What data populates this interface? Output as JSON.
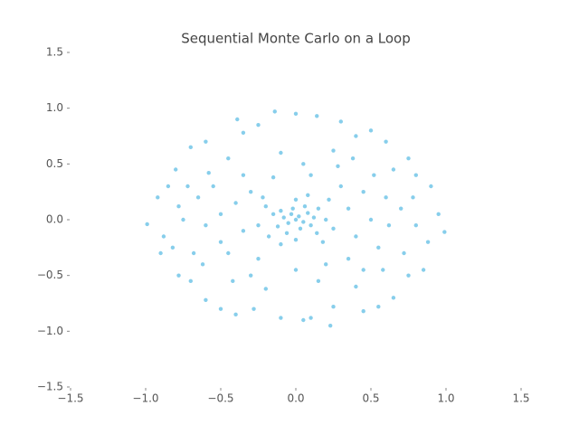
{
  "chart_data": {
    "type": "scatter",
    "title": "Sequential Monte Carlo on a Loop",
    "color": "#87ceeb",
    "xlim": [
      -1.5,
      1.5
    ],
    "ylim": [
      -1.5,
      1.5
    ],
    "xticks": [
      {
        "value": -1.5,
        "label": "−1.5"
      },
      {
        "value": -1.0,
        "label": "−1.0"
      },
      {
        "value": -0.5,
        "label": "−0.5"
      },
      {
        "value": 0,
        "label": "0.0"
      },
      0.5,
      {
        "value": 1,
        "label": "1.0"
      },
      1.5
    ],
    "yticks": [
      {
        "value": -1.5,
        "label": "−1.5"
      },
      {
        "value": -1.0,
        "label": "−1.0"
      },
      {
        "value": -0.5,
        "label": "−0.5"
      },
      {
        "value": 0,
        "label": "0.0"
      },
      0.5,
      {
        "value": 1,
        "label": "1.0"
      },
      1.5
    ],
    "x": [
      0,
      0.02,
      -0.03,
      0.05,
      -0.05,
      0.08,
      -0.08,
      0.1,
      -0.1,
      0.03,
      -0.02,
      0.12,
      -0.12,
      0.06,
      -0.06,
      0.15,
      -0.15,
      0.14,
      -0.18,
      0.2,
      -0.2,
      0.0,
      0.0,
      0.22,
      -0.25,
      0.18,
      -0.22,
      0.25,
      0.08,
      -0.1,
      0.35,
      0.4,
      0.3,
      -0.3,
      -0.35,
      -0.4,
      0.1,
      -0.15,
      0.2,
      -0.25,
      0.45,
      -0.45,
      0.5,
      -0.5,
      0.05,
      0.0,
      0.35,
      -0.35,
      0.55,
      -0.55,
      0.28,
      -0.3,
      0.45,
      -0.5,
      0.6,
      -0.6,
      0.15,
      -0.1,
      0.38,
      -0.42,
      0.52,
      -0.58,
      0.62,
      -0.65,
      0.25,
      -0.2,
      0.4,
      -0.45,
      0.58,
      -0.62,
      -0.99,
      0.99,
      -0.14,
      0.23,
      0.14,
      -0.39,
      0.5,
      -0.6,
      0.75,
      -0.8,
      0.9,
      -0.92,
      0.95,
      -0.9,
      0.85,
      -0.78,
      0.65,
      -0.6,
      0.45,
      -0.4,
      0.1,
      -0.1,
      0.3,
      -0.25,
      0.6,
      -0.7,
      0.8,
      -0.85,
      0.88,
      -0.88,
      0.75,
      -0.7,
      0.55,
      -0.5,
      0.0,
      0.05,
      0.7,
      -0.75,
      0.72,
      -0.72,
      0.65,
      -0.68,
      0.4,
      -0.35,
      0.25,
      -0.28,
      0.8,
      -0.82,
      0.78,
      -0.78
    ],
    "values": [
      0,
      0.03,
      0.05,
      -0.02,
      -0.03,
      0.06,
      0.02,
      -0.05,
      0.08,
      -0.08,
      0.1,
      0.02,
      -0.06,
      0.12,
      -0.12,
      0.1,
      0.05,
      -0.12,
      -0.15,
      0.0,
      0.12,
      0.18,
      -0.18,
      0.18,
      -0.05,
      -0.2,
      0.2,
      -0.08,
      0.22,
      -0.22,
      0.1,
      -0.15,
      0.3,
      0.25,
      -0.1,
      0.15,
      0.4,
      0.38,
      -0.4,
      -0.35,
      0.25,
      -0.3,
      0.0,
      0.05,
      0.5,
      -0.45,
      -0.35,
      0.4,
      -0.25,
      0.3,
      0.48,
      -0.5,
      -0.45,
      -0.2,
      0.2,
      -0.05,
      -0.55,
      0.6,
      0.55,
      -0.55,
      0.4,
      0.42,
      -0.05,
      0.2,
      0.62,
      -0.62,
      -0.6,
      0.55,
      -0.45,
      -0.4,
      -0.04,
      -0.11,
      0.97,
      -0.95,
      0.93,
      0.9,
      0.8,
      0.7,
      0.55,
      0.45,
      0.3,
      0.2,
      0.05,
      -0.3,
      -0.45,
      -0.5,
      -0.7,
      -0.72,
      -0.82,
      -0.85,
      -0.88,
      -0.88,
      0.88,
      0.85,
      0.7,
      0.65,
      0.4,
      0.3,
      -0.2,
      -0.15,
      -0.5,
      -0.55,
      -0.78,
      -0.8,
      0.95,
      -0.9,
      0.1,
      0.0,
      -0.3,
      0.3,
      0.45,
      -0.3,
      0.75,
      0.78,
      -0.78,
      -0.8,
      -0.05,
      -0.25,
      0.2,
      0.12
    ]
  }
}
